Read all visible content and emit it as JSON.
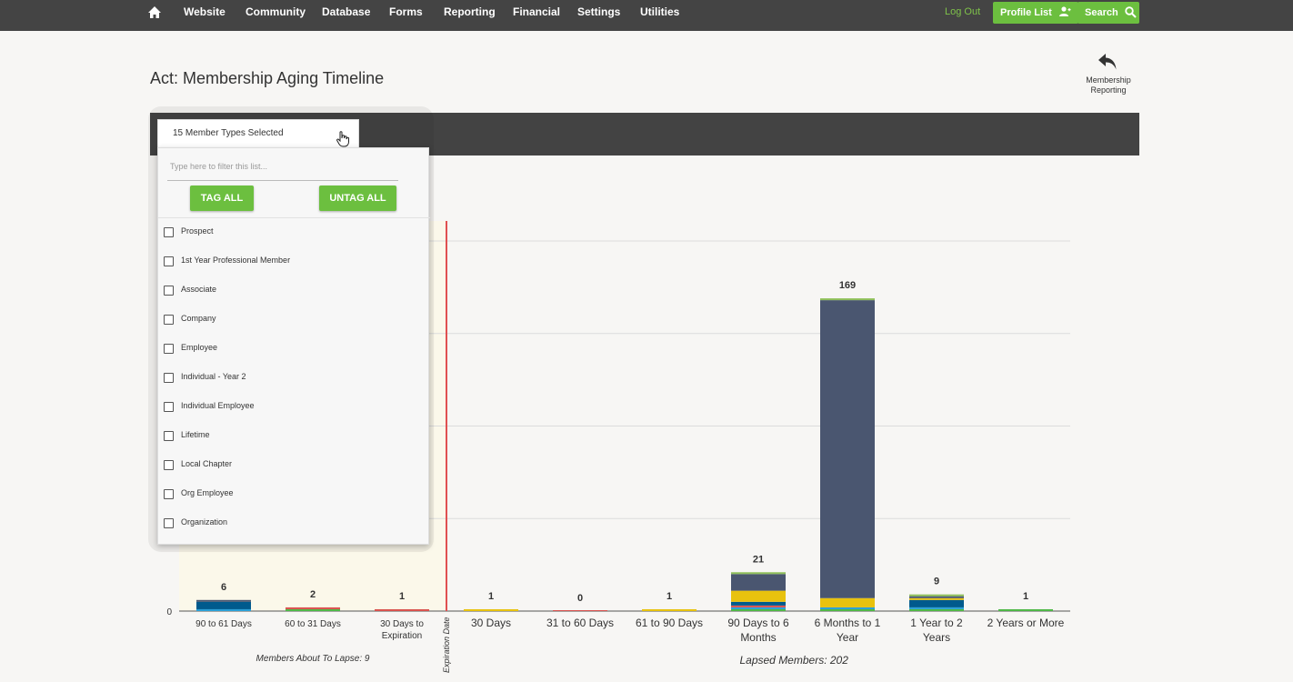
{
  "nav": {
    "items": [
      "Website",
      "Community",
      "Database",
      "Forms",
      "Reporting",
      "Financial",
      "Settings",
      "Utilities"
    ],
    "logout": "Log Out",
    "profile_list": "Profile List",
    "search": "Search"
  },
  "page": {
    "title": "Act: Membership Aging Timeline",
    "back_label_line1": "Membership",
    "back_label_line2": "Reporting"
  },
  "member_types": {
    "selected_label": "15 Member Types Selected",
    "filter_placeholder": "Type here to filter this list...",
    "tag_all": "TAG ALL",
    "untag_all": "UNTAG ALL",
    "items": [
      "Prospect",
      "1st Year Professional Member",
      "Associate",
      "Company",
      "Employee",
      "Individual - Year 2",
      "Individual Employee",
      "Lifetime",
      "Local Chapter",
      "Org Employee",
      "Organization"
    ]
  },
  "chart_data": {
    "type": "bar",
    "stacked": true,
    "categories": [
      [
        "90 to 61 Days"
      ],
      [
        "60 to 31 Days"
      ],
      [
        "30 Days to",
        "Expiration"
      ],
      [
        "30 Days"
      ],
      [
        "31 to 60 Days"
      ],
      [
        "61 to 90 Days"
      ],
      [
        "90 Days to 6",
        "Months"
      ],
      [
        "6 Months to 1",
        "Year"
      ],
      [
        "1 Year to 2",
        "Years"
      ],
      [
        "2 Years or More"
      ]
    ],
    "totals": [
      6,
      2,
      1,
      1,
      0,
      1,
      21,
      169,
      9,
      1
    ],
    "y_tick_label": "0",
    "ylim": [
      0,
      200
    ],
    "grid": true,
    "divider_label": "Expiration Date",
    "group_labels": [
      "Members About To Lapse: 9",
      "Lapsed Members: 202"
    ],
    "stack_colors": [
      "#4fb847",
      "#2a9fd6",
      "#d9534f",
      "#005a8d",
      "#e8c20e",
      "#4a5670",
      "#8fbf5a"
    ],
    "stacks": [
      [
        0,
        1,
        0,
        4,
        0,
        1,
        0
      ],
      [
        1,
        0,
        1,
        0,
        0,
        0,
        0
      ],
      [
        0,
        0,
        1,
        0,
        0,
        0,
        0
      ],
      [
        0,
        0,
        0,
        0,
        1,
        0,
        0
      ],
      [
        0,
        0,
        0,
        0,
        0,
        0,
        0
      ],
      [
        0,
        0,
        0,
        0,
        1,
        0,
        0
      ],
      [
        1,
        1,
        1,
        2,
        6,
        9,
        1
      ],
      [
        1,
        1,
        0,
        0,
        5,
        161,
        1
      ],
      [
        1,
        1,
        0,
        4,
        1,
        1,
        1
      ],
      [
        1,
        0,
        0,
        0,
        0,
        0,
        0
      ]
    ]
  }
}
